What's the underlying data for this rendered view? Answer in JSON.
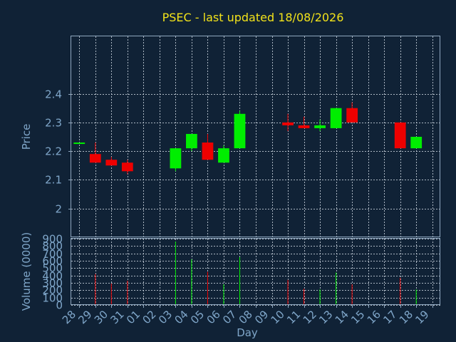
{
  "chart_data": {
    "type": "candlestick",
    "title": "PSEC - last updated 18/08/2026",
    "price_panel": {
      "ylabel": "Price",
      "ylim": [
        1.9,
        2.6
      ],
      "yticks": [
        "2",
        "2.1",
        "2.2",
        "2.3",
        "2.4"
      ],
      "grid": true
    },
    "volume_panel": {
      "ylabel": "Volume (0000)",
      "ylim": [
        0,
        900
      ],
      "yticks": [
        "0",
        "100",
        "200",
        "300",
        "400",
        "500",
        "600",
        "700",
        "800",
        "900"
      ],
      "grid": true
    },
    "xlabel": "Day",
    "x_ticks": [
      "28",
      "29",
      "30",
      "31",
      "01",
      "02",
      "03",
      "04",
      "05",
      "06",
      "07",
      "08",
      "09",
      "10",
      "11",
      "12",
      "13",
      "14",
      "15",
      "16",
      "17",
      "18",
      "19"
    ],
    "candles": [
      {
        "day": "28",
        "open": 2.23,
        "high": 2.23,
        "low": 2.23,
        "close": 2.23,
        "volume": 0
      },
      {
        "day": "29",
        "open": 2.19,
        "high": 2.23,
        "low": 2.16,
        "close": 2.16,
        "volume": 420
      },
      {
        "day": "30",
        "open": 2.17,
        "high": 2.18,
        "low": 2.15,
        "close": 2.15,
        "volume": 290
      },
      {
        "day": "31",
        "open": 2.16,
        "high": 2.17,
        "low": 2.12,
        "close": 2.13,
        "volume": 330
      },
      {
        "day": "03",
        "open": 2.14,
        "high": 2.21,
        "low": 2.13,
        "close": 2.21,
        "volume": 860
      },
      {
        "day": "04",
        "open": 2.21,
        "high": 2.26,
        "low": 2.2,
        "close": 2.26,
        "volume": 620
      },
      {
        "day": "05",
        "open": 2.23,
        "high": 2.26,
        "low": 2.17,
        "close": 2.17,
        "volume": 450
      },
      {
        "day": "06",
        "open": 2.16,
        "high": 2.22,
        "low": 2.16,
        "close": 2.21,
        "volume": 280
      },
      {
        "day": "07",
        "open": 2.21,
        "high": 2.34,
        "low": 2.21,
        "close": 2.33,
        "volume": 650
      },
      {
        "day": "10",
        "open": 2.3,
        "high": 2.33,
        "low": 2.27,
        "close": 2.29,
        "volume": 340
      },
      {
        "day": "11",
        "open": 2.29,
        "high": 2.32,
        "low": 2.28,
        "close": 2.28,
        "volume": 220
      },
      {
        "day": "12",
        "open": 2.28,
        "high": 2.31,
        "low": 2.27,
        "close": 2.29,
        "volume": 210
      },
      {
        "day": "13",
        "open": 2.28,
        "high": 2.35,
        "low": 2.28,
        "close": 2.35,
        "volume": 440
      },
      {
        "day": "14",
        "open": 2.35,
        "high": 2.37,
        "low": 2.3,
        "close": 2.3,
        "volume": 280
      },
      {
        "day": "17",
        "open": 2.3,
        "high": 2.3,
        "low": 2.21,
        "close": 2.21,
        "volume": 370
      },
      {
        "day": "18",
        "open": 2.21,
        "high": 2.25,
        "low": 2.21,
        "close": 2.25,
        "volume": 210
      }
    ],
    "colors": {
      "up": "#00ee00",
      "down": "#ee0000",
      "flat": "#00ee00",
      "title": "#f2e21a",
      "axis_text": "#7fa6c9",
      "background": "#102236"
    }
  }
}
